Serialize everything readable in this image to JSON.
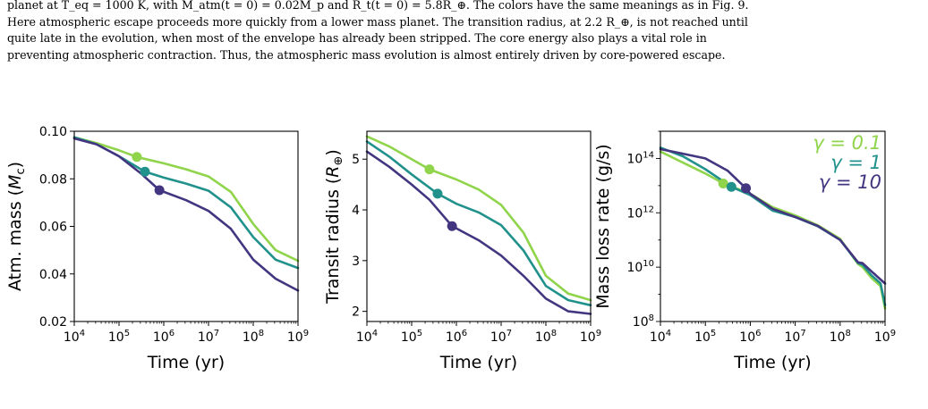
{
  "caption": {
    "line1": "planet at T_eq = 1000 K, with M_atm(t = 0) = 0.02M_p and R_t(t = 0) = 5.8R_⊕. The colors have the same meanings as in Fig. 9.",
    "line2": "Here atmospheric escape proceeds more quickly from a lower mass planet. The transition radius, at 2.2 R_⊕, is not reached until",
    "line3": "quite late in the evolution, when most of the envelope has already been stripped. The core energy also plays a vital role in",
    "line4": "preventing atmospheric contraction. Thus, the atmospheric mass evolution is almost entirely driven by core-powered escape."
  },
  "colors": {
    "gamma_0_1": "#8fd44a",
    "gamma_1": "#21918c",
    "gamma_10": "#433580"
  },
  "chart_data": [
    {
      "type": "line",
      "xlabel": "Time (yr)",
      "ylabel": "Atm. mass (M_c)",
      "xscale": "log",
      "xlim": [
        10000,
        1000000000
      ],
      "ylim": [
        0.02,
        0.1
      ],
      "xticks": [
        "10^4",
        "10^5",
        "10^6",
        "10^7",
        "10^8",
        "10^9"
      ],
      "yticks": [
        "0.02",
        "0.04",
        "0.06",
        "0.08",
        "0.10"
      ],
      "series": [
        {
          "name": "γ = 0.1",
          "color": "#8fd44a",
          "x": [
            10000,
            31600,
            100000,
            250000,
            1000000,
            3160000,
            10000000,
            31600000,
            100000000,
            316000000,
            1000000000
          ],
          "y": [
            0.0975,
            0.095,
            0.092,
            0.0892,
            0.0865,
            0.084,
            0.081,
            0.0745,
            0.061,
            0.05,
            0.0455
          ],
          "marker": {
            "x": 250000,
            "y": 0.0892
          }
        },
        {
          "name": "γ = 1",
          "color": "#21918c",
          "x": [
            10000,
            31600,
            100000,
            380000,
            1000000,
            3160000,
            10000000,
            31600000,
            100000000,
            316000000,
            1000000000
          ],
          "y": [
            0.0975,
            0.0945,
            0.0895,
            0.083,
            0.0805,
            0.078,
            0.075,
            0.068,
            0.0555,
            0.046,
            0.0425
          ],
          "marker": {
            "x": 380000,
            "y": 0.083
          }
        },
        {
          "name": "γ = 10",
          "color": "#433580",
          "x": [
            10000,
            31600,
            100000,
            320000,
            800000,
            3160000,
            10000000,
            31600000,
            100000000,
            316000000,
            1000000000
          ],
          "y": [
            0.097,
            0.0945,
            0.0895,
            0.082,
            0.0752,
            0.071,
            0.0665,
            0.059,
            0.046,
            0.038,
            0.033
          ],
          "marker": {
            "x": 800000,
            "y": 0.0752
          }
        }
      ]
    },
    {
      "type": "line",
      "xlabel": "Time (yr)",
      "ylabel": "Transit radius (R_⊕)",
      "xscale": "log",
      "xlim": [
        10000,
        1000000000
      ],
      "ylim": [
        1.8,
        5.55
      ],
      "xticks": [
        "10^4",
        "10^5",
        "10^6",
        "10^7",
        "10^8",
        "10^9"
      ],
      "yticks": [
        "2",
        "3",
        "4",
        "5"
      ],
      "series": [
        {
          "name": "γ = 0.1",
          "color": "#8fd44a",
          "x": [
            10000,
            31600,
            100000,
            250000,
            1000000,
            3160000,
            10000000,
            31600000,
            100000000,
            316000000,
            1000000000
          ],
          "y": [
            5.45,
            5.25,
            5.0,
            4.8,
            4.6,
            4.4,
            4.1,
            3.55,
            2.7,
            2.35,
            2.22
          ],
          "marker": {
            "x": 250000,
            "y": 4.8
          }
        },
        {
          "name": "γ = 1",
          "color": "#21918c",
          "x": [
            10000,
            31600,
            100000,
            380000,
            1000000,
            3160000,
            10000000,
            31600000,
            100000000,
            316000000,
            1000000000
          ],
          "y": [
            5.35,
            5.05,
            4.7,
            4.32,
            4.12,
            3.95,
            3.7,
            3.2,
            2.5,
            2.22,
            2.12
          ],
          "marker": {
            "x": 380000,
            "y": 4.32
          }
        },
        {
          "name": "γ = 10",
          "color": "#433580",
          "x": [
            10000,
            31600,
            100000,
            250000,
            800000,
            3160000,
            10000000,
            31600000,
            100000000,
            316000000,
            1000000000
          ],
          "y": [
            5.15,
            4.85,
            4.5,
            4.2,
            3.68,
            3.4,
            3.1,
            2.7,
            2.25,
            2.0,
            1.95
          ],
          "marker": {
            "x": 800000,
            "y": 3.68
          }
        }
      ]
    },
    {
      "type": "line",
      "xlabel": "Time (yr)",
      "ylabel": "Mass loss rate (g/s)",
      "xscale": "log",
      "yscale": "log",
      "xlim": [
        10000,
        1000000000
      ],
      "ylim": [
        100000000,
        1000000000000000
      ],
      "xticks": [
        "10^4",
        "10^5",
        "10^6",
        "10^7",
        "10^8",
        "10^9"
      ],
      "yticks": [
        "10^8",
        "10^10",
        "10^12",
        "10^14"
      ],
      "legend": {
        "position": "top-right",
        "entries": [
          "γ = 0.1",
          "γ = 1",
          "γ = 10"
        ]
      },
      "series": [
        {
          "name": "γ = 0.1",
          "color": "#8fd44a",
          "x": [
            10000,
            31600,
            100000,
            250000,
            1000000,
            3160000,
            10000000,
            31600000,
            100000000,
            251000000,
            316000000,
            501000000,
            794000000,
            1000000000
          ],
          "y": [
            180000000000000.0,
            70000000000000.0,
            28000000000000.0,
            12000000000000.0,
            5000000000000.0,
            1600000000000.0,
            800000000000.0,
            350000000000.0,
            110000000000.0,
            13000000000.0,
            10000000000.0,
            4000000000.0,
            2000000000.0,
            300000000.0
          ],
          "marker": {
            "x": 250000,
            "y": 12000000000000.0
          }
        },
        {
          "name": "γ = 1",
          "color": "#21918c",
          "x": [
            10000,
            31600,
            100000,
            380000,
            1000000,
            3160000,
            10000000,
            31600000,
            100000000,
            251000000,
            316000000,
            501000000,
            794000000,
            1000000000
          ],
          "y": [
            250000000000000.0,
            120000000000000.0,
            40000000000000.0,
            9000000000000.0,
            4500000000000.0,
            1200000000000.0,
            700000000000.0,
            320000000000.0,
            100000000000.0,
            14000000000.0,
            12000000000.0,
            5000000000.0,
            2500000000.0,
            400000000.0
          ],
          "marker": {
            "x": 380000,
            "y": 9000000000000.0
          }
        },
        {
          "name": "γ = 10",
          "color": "#433580",
          "x": [
            10000,
            31600,
            100000,
            316000,
            800000,
            1000000,
            3160000,
            10000000,
            31600000,
            100000000,
            251000000,
            316000000,
            501000000,
            1000000000
          ],
          "y": [
            220000000000000.0,
            150000000000000.0,
            100000000000000.0,
            35000000000000.0,
            8000000000000.0,
            5000000000000.0,
            1400000000000.0,
            700000000000.0,
            330000000000.0,
            100000000000.0,
            15000000000.0,
            14000000000.0,
            7000000000.0,
            2500000000.0
          ],
          "marker": {
            "x": 800000,
            "y": 8000000000000.0
          }
        }
      ]
    }
  ]
}
